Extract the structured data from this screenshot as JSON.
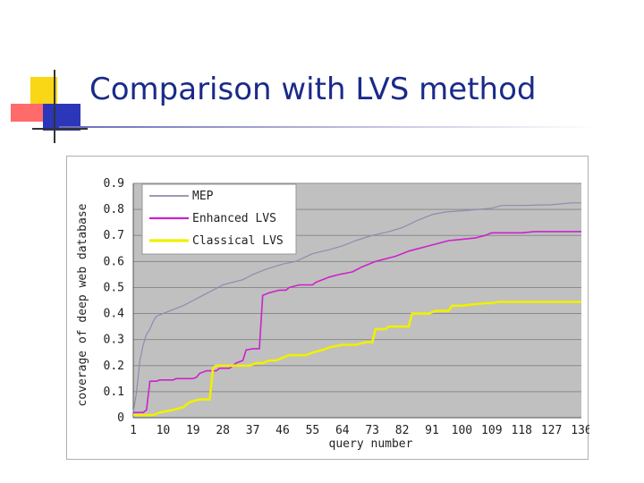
{
  "slide": {
    "title": "Comparison with LVS method"
  },
  "colors": {
    "title": "#1a2a8a",
    "plot_bg": "#c0c0c0",
    "grid": "#8a8a8a"
  },
  "chart_data": {
    "type": "line",
    "title": "",
    "xlabel": "query number",
    "ylabel": "coverage of deep web database",
    "xlim": [
      1,
      136
    ],
    "ylim": [
      0,
      0.9
    ],
    "x_ticks": [
      1,
      10,
      19,
      28,
      37,
      46,
      55,
      64,
      73,
      82,
      91,
      100,
      109,
      118,
      127,
      136
    ],
    "y_ticks": [
      0,
      0.1,
      0.2,
      0.3,
      0.4,
      0.5,
      0.6,
      0.7,
      0.8,
      0.9
    ],
    "y_tick_labels": [
      "0",
      "0.1",
      "0.2",
      "0.3",
      "0.4",
      "0.5",
      "0.6",
      "0.7",
      "0.8",
      "0.9"
    ],
    "grid": true,
    "legend_position": "top-left",
    "series": [
      {
        "name": "MEP",
        "color": "#8c8cb0",
        "width": 1.2,
        "points": [
          [
            1,
            0.02
          ],
          [
            2,
            0.1
          ],
          [
            3,
            0.22
          ],
          [
            4,
            0.28
          ],
          [
            5,
            0.32
          ],
          [
            6,
            0.34
          ],
          [
            7,
            0.37
          ],
          [
            8,
            0.39
          ],
          [
            10,
            0.4
          ],
          [
            12,
            0.41
          ],
          [
            14,
            0.42
          ],
          [
            16,
            0.43
          ],
          [
            19,
            0.45
          ],
          [
            22,
            0.47
          ],
          [
            25,
            0.49
          ],
          [
            28,
            0.51
          ],
          [
            31,
            0.52
          ],
          [
            34,
            0.53
          ],
          [
            37,
            0.55
          ],
          [
            41,
            0.57
          ],
          [
            46,
            0.59
          ],
          [
            50,
            0.6
          ],
          [
            55,
            0.63
          ],
          [
            60,
            0.645
          ],
          [
            64,
            0.66
          ],
          [
            68,
            0.68
          ],
          [
            73,
            0.7
          ],
          [
            78,
            0.715
          ],
          [
            82,
            0.73
          ],
          [
            87,
            0.76
          ],
          [
            91,
            0.78
          ],
          [
            95,
            0.79
          ],
          [
            100,
            0.795
          ],
          [
            105,
            0.8
          ],
          [
            109,
            0.805
          ],
          [
            112,
            0.815
          ],
          [
            118,
            0.815
          ],
          [
            127,
            0.818
          ],
          [
            133,
            0.825
          ],
          [
            136,
            0.825
          ]
        ]
      },
      {
        "name": "Enhanced LVS",
        "color": "#cc22cc",
        "width": 1.6,
        "points": [
          [
            1,
            0.02
          ],
          [
            4,
            0.02
          ],
          [
            5,
            0.03
          ],
          [
            6,
            0.14
          ],
          [
            8,
            0.14
          ],
          [
            9,
            0.145
          ],
          [
            13,
            0.145
          ],
          [
            14,
            0.15
          ],
          [
            19,
            0.15
          ],
          [
            20,
            0.155
          ],
          [
            21,
            0.17
          ],
          [
            23,
            0.18
          ],
          [
            26,
            0.18
          ],
          [
            27,
            0.19
          ],
          [
            30,
            0.19
          ],
          [
            32,
            0.21
          ],
          [
            34,
            0.22
          ],
          [
            35,
            0.26
          ],
          [
            37,
            0.265
          ],
          [
            39,
            0.265
          ],
          [
            40,
            0.47
          ],
          [
            42,
            0.48
          ],
          [
            45,
            0.49
          ],
          [
            47,
            0.49
          ],
          [
            48,
            0.5
          ],
          [
            51,
            0.51
          ],
          [
            55,
            0.51
          ],
          [
            56,
            0.52
          ],
          [
            58,
            0.53
          ],
          [
            60,
            0.54
          ],
          [
            63,
            0.55
          ],
          [
            67,
            0.56
          ],
          [
            70,
            0.58
          ],
          [
            72,
            0.59
          ],
          [
            74,
            0.6
          ],
          [
            77,
            0.61
          ],
          [
            80,
            0.62
          ],
          [
            82,
            0.63
          ],
          [
            84,
            0.64
          ],
          [
            87,
            0.65
          ],
          [
            90,
            0.66
          ],
          [
            93,
            0.67
          ],
          [
            96,
            0.68
          ],
          [
            100,
            0.685
          ],
          [
            104,
            0.69
          ],
          [
            107,
            0.7
          ],
          [
            109,
            0.71
          ],
          [
            118,
            0.71
          ],
          [
            122,
            0.715
          ],
          [
            136,
            0.715
          ]
        ]
      },
      {
        "name": "Classical LVS",
        "color": "#f0f000",
        "width": 2.6,
        "points": [
          [
            1,
            0.01
          ],
          [
            5,
            0.01
          ],
          [
            7,
            0.01
          ],
          [
            9,
            0.02
          ],
          [
            13,
            0.03
          ],
          [
            16,
            0.04
          ],
          [
            18,
            0.06
          ],
          [
            21,
            0.07
          ],
          [
            24,
            0.07
          ],
          [
            25,
            0.19
          ],
          [
            26,
            0.2
          ],
          [
            36,
            0.2
          ],
          [
            38,
            0.21
          ],
          [
            40,
            0.21
          ],
          [
            42,
            0.22
          ],
          [
            44,
            0.22
          ],
          [
            46,
            0.23
          ],
          [
            48,
            0.24
          ],
          [
            53,
            0.24
          ],
          [
            55,
            0.25
          ],
          [
            58,
            0.26
          ],
          [
            60,
            0.27
          ],
          [
            64,
            0.28
          ],
          [
            68,
            0.28
          ],
          [
            71,
            0.29
          ],
          [
            73,
            0.29
          ],
          [
            74,
            0.34
          ],
          [
            77,
            0.34
          ],
          [
            78,
            0.35
          ],
          [
            84,
            0.35
          ],
          [
            85,
            0.4
          ],
          [
            90,
            0.4
          ],
          [
            92,
            0.41
          ],
          [
            96,
            0.41
          ],
          [
            97,
            0.43
          ],
          [
            100,
            0.43
          ],
          [
            103,
            0.435
          ],
          [
            107,
            0.44
          ],
          [
            109,
            0.44
          ],
          [
            111,
            0.445
          ],
          [
            136,
            0.445
          ]
        ]
      }
    ]
  }
}
